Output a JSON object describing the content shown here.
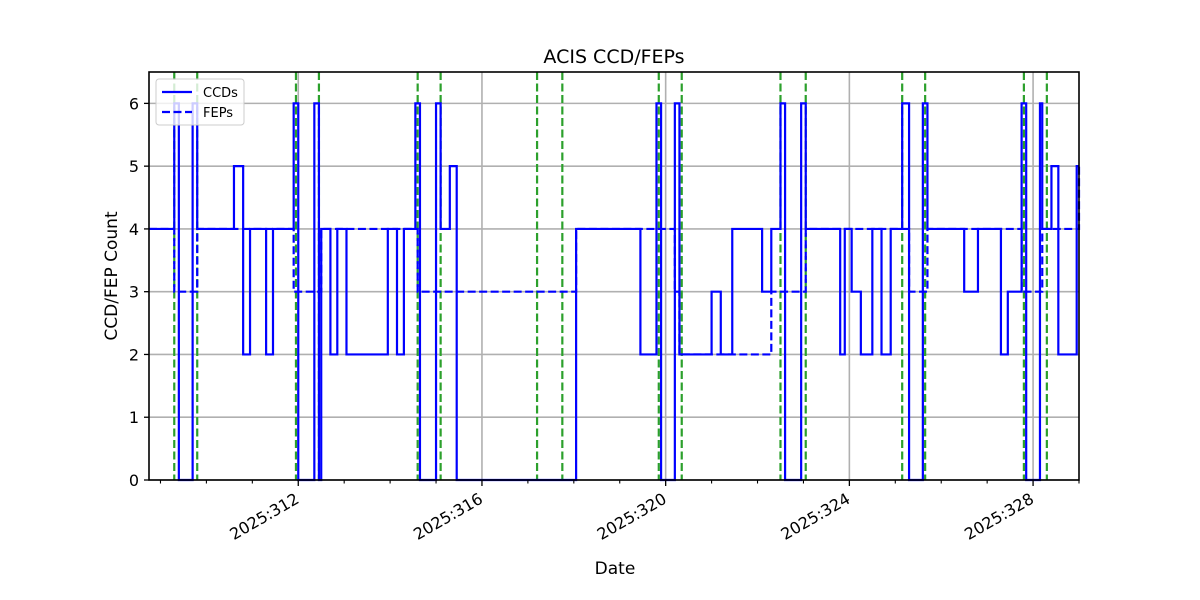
{
  "chart_data": {
    "type": "line",
    "title": "ACIS CCD/FEPs",
    "xlabel": "Date",
    "ylabel": "CCD/FEP Count",
    "ylim": [
      0,
      6.5
    ],
    "xlim_days": [
      308.75,
      329.0
    ],
    "grid": true,
    "legend_position": "upper left",
    "yticks": [
      "0",
      "1",
      "2",
      "3",
      "4",
      "5",
      "6"
    ],
    "xticks": [
      {
        "day": 312,
        "label": "2025:312"
      },
      {
        "day": 316,
        "label": "2025:316"
      },
      {
        "day": 320,
        "label": "2025:320"
      },
      {
        "day": 324,
        "label": "2025:324"
      },
      {
        "day": 328,
        "label": "2025:328"
      }
    ],
    "series": [
      {
        "name": "CCDs",
        "style": "solid",
        "color": "#0000ff",
        "steps": [
          [
            308.75,
            4
          ],
          [
            309.3,
            6
          ],
          [
            309.4,
            0
          ],
          [
            309.7,
            6
          ],
          [
            309.8,
            4
          ],
          [
            310.6,
            5
          ],
          [
            310.8,
            2
          ],
          [
            310.95,
            4
          ],
          [
            311.3,
            2
          ],
          [
            311.45,
            4
          ],
          [
            311.9,
            6
          ],
          [
            312.0,
            0
          ],
          [
            312.35,
            6
          ],
          [
            312.45,
            0
          ],
          [
            312.5,
            4
          ],
          [
            312.7,
            2
          ],
          [
            312.85,
            4
          ],
          [
            313.05,
            2
          ],
          [
            313.95,
            4
          ],
          [
            314.15,
            2
          ],
          [
            314.3,
            4
          ],
          [
            314.55,
            6
          ],
          [
            314.65,
            0
          ],
          [
            315.0,
            6
          ],
          [
            315.1,
            4
          ],
          [
            315.3,
            5
          ],
          [
            315.45,
            0
          ],
          [
            318.05,
            4
          ],
          [
            319.1,
            4
          ],
          [
            319.45,
            2
          ],
          [
            319.8,
            6
          ],
          [
            319.9,
            0
          ],
          [
            320.2,
            6
          ],
          [
            320.3,
            2
          ],
          [
            321.0,
            3
          ],
          [
            321.2,
            2
          ],
          [
            321.45,
            4
          ],
          [
            322.1,
            3
          ],
          [
            322.3,
            4
          ],
          [
            322.5,
            6
          ],
          [
            322.6,
            0
          ],
          [
            322.95,
            6
          ],
          [
            323.05,
            4
          ],
          [
            323.8,
            2
          ],
          [
            323.9,
            4
          ],
          [
            324.05,
            3
          ],
          [
            324.25,
            2
          ],
          [
            324.5,
            4
          ],
          [
            324.7,
            2
          ],
          [
            324.9,
            4
          ],
          [
            325.15,
            6
          ],
          [
            325.3,
            0
          ],
          [
            325.6,
            6
          ],
          [
            325.7,
            4
          ],
          [
            326.5,
            3
          ],
          [
            326.8,
            4
          ],
          [
            327.3,
            2
          ],
          [
            327.45,
            3
          ],
          [
            327.75,
            6
          ],
          [
            327.85,
            0
          ],
          [
            328.15,
            6
          ],
          [
            328.2,
            4
          ],
          [
            328.4,
            5
          ],
          [
            328.55,
            2
          ],
          [
            328.95,
            5
          ],
          [
            329.0,
            5
          ]
        ]
      },
      {
        "name": "FEPs",
        "style": "dashed",
        "color": "#0000ff",
        "steps": [
          [
            308.75,
            4
          ],
          [
            309.3,
            3
          ],
          [
            309.7,
            3
          ],
          [
            309.8,
            4
          ],
          [
            311.9,
            3
          ],
          [
            312.5,
            4
          ],
          [
            314.6,
            3
          ],
          [
            315.45,
            3
          ],
          [
            318.05,
            4
          ],
          [
            320.2,
            3
          ],
          [
            320.3,
            2
          ],
          [
            322.3,
            3
          ],
          [
            323.05,
            4
          ],
          [
            325.3,
            3
          ],
          [
            325.7,
            4
          ],
          [
            327.75,
            3
          ],
          [
            328.2,
            4
          ],
          [
            329.0,
            5
          ]
        ]
      }
    ],
    "vlines": {
      "color": "#2ca02c",
      "style": "dashed",
      "days": [
        309.3,
        309.8,
        311.95,
        312.45,
        314.6,
        315.1,
        317.2,
        317.75,
        319.85,
        320.35,
        322.5,
        323.05,
        325.15,
        325.65,
        327.8,
        328.3
      ]
    }
  },
  "legend": {
    "items": [
      {
        "label": "CCDs",
        "style": "solid"
      },
      {
        "label": "FEPs",
        "style": "dashed"
      }
    ]
  }
}
